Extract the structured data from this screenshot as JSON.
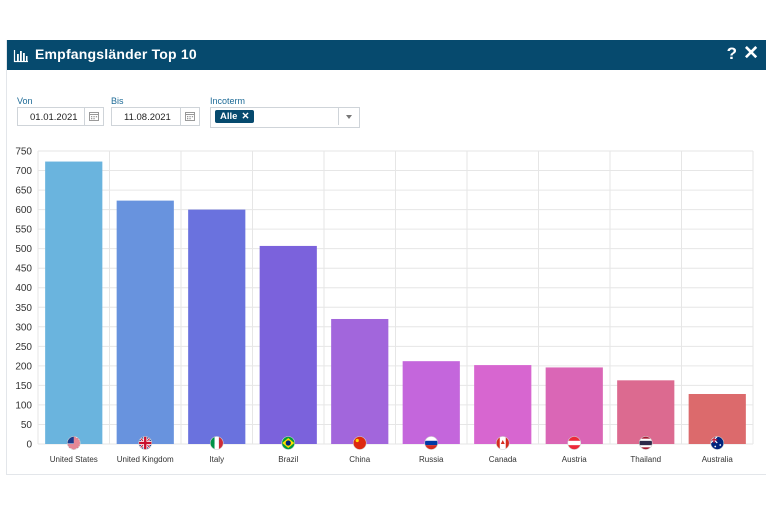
{
  "header": {
    "title": "Empfangsländer Top 10",
    "help_label": "?",
    "close_label": "✕",
    "title_icon": "bar-chart-icon"
  },
  "filters": {
    "from": {
      "label": "Von",
      "value": "01.01.2021"
    },
    "to": {
      "label": "Bis",
      "value": "11.08.2021"
    },
    "incoterm": {
      "label": "Incoterm",
      "chip": "Alle",
      "chip_remove": "✕"
    }
  },
  "colors": {
    "header_bg": "#064a6e",
    "label": "#1d6a96"
  },
  "chart_data": {
    "type": "bar",
    "title": "",
    "xlabel": "",
    "ylabel": "",
    "ylim": [
      0,
      750
    ],
    "yticks": [
      0,
      50,
      100,
      150,
      200,
      250,
      300,
      350,
      400,
      450,
      500,
      550,
      600,
      650,
      700,
      750
    ],
    "grid": true,
    "categories": [
      "United States",
      "United Kingdom",
      "Italy",
      "Brazil",
      "China",
      "Russia",
      "Canada",
      "Austria",
      "Thailand",
      "Australia"
    ],
    "values": [
      723,
      623,
      600,
      507,
      320,
      212,
      202,
      196,
      163,
      128
    ],
    "flags": [
      "us-flag-icon",
      "gb-flag-icon",
      "it-flag-icon",
      "br-flag-icon",
      "cn-flag-icon",
      "ru-flag-icon",
      "ca-flag-icon",
      "at-flag-icon",
      "th-flag-icon",
      "au-flag-icon"
    ],
    "colors": [
      "#6ab4de",
      "#6893de",
      "#6a72de",
      "#7b62dc",
      "#a266dc",
      "#c466dc",
      "#d766d0",
      "#da66b6",
      "#dc6a90",
      "#dc6a6c"
    ]
  }
}
